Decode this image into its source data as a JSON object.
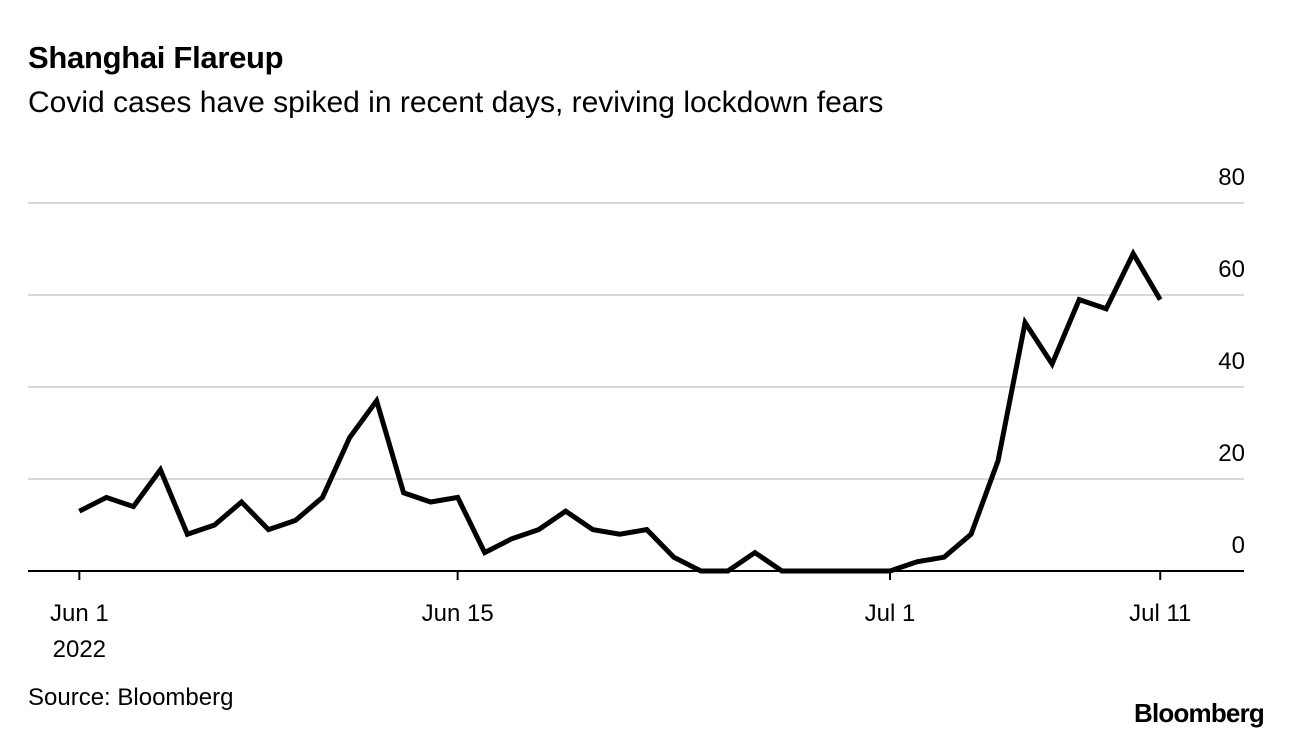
{
  "chart_data": {
    "type": "line",
    "title": "Shanghai Flareup",
    "subtitle": "Covid cases have spiked in recent days, reviving lockdown fears",
    "source": "Source: Bloomberg",
    "brand": "Bloomberg",
    "xlabel": "",
    "ylabel": "",
    "ylim": [
      0,
      80
    ],
    "yticks": [
      0,
      20,
      40,
      60,
      80
    ],
    "grid": true,
    "x_tick_labels": [
      {
        "day": 0,
        "label": "Jun 1",
        "sublabel": "2022"
      },
      {
        "day": 14,
        "label": "Jun 15",
        "sublabel": ""
      },
      {
        "day": 30,
        "label": "Jul 1",
        "sublabel": ""
      },
      {
        "day": 40,
        "label": "Jul 11",
        "sublabel": ""
      }
    ],
    "x_domain": [
      -1.9,
      43.1
    ],
    "series": [
      {
        "name": "Covid cases",
        "color": "#000000",
        "values": [
          13,
          16,
          14,
          22,
          8,
          10,
          15,
          9,
          11,
          16,
          29,
          37,
          17,
          15,
          16,
          4,
          7,
          9,
          13,
          9,
          8,
          9,
          3,
          0,
          0,
          4,
          0,
          0,
          0,
          0,
          0,
          2,
          3,
          8,
          24,
          54,
          45,
          59,
          57,
          69,
          59
        ]
      }
    ]
  }
}
